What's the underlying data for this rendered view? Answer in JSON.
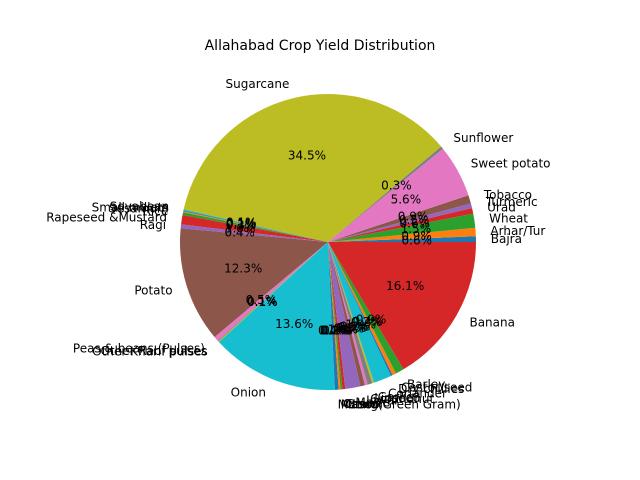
{
  "chart_data": {
    "type": "pie",
    "title": "Allahabad Crop Yield Distribution",
    "startangle_deg": 0,
    "direction": "counterclockwise",
    "label_format": "percent_one_decimal",
    "palette": [
      "#1f77b4",
      "#ff7f0e",
      "#2ca02c",
      "#d62728",
      "#9467bd",
      "#8c564b",
      "#e377c2",
      "#7f7f7f",
      "#bcbd22",
      "#17becf"
    ],
    "slices": [
      {
        "label": "Bajra",
        "pct": 0.6
      },
      {
        "label": "Arhar/Tur",
        "pct": 0.9
      },
      {
        "label": "Wheat",
        "pct": 1.5
      },
      {
        "label": "Urad",
        "pct": 0.6
      },
      {
        "label": "Turmeric",
        "pct": 0.5
      },
      {
        "label": "Tobacco",
        "pct": 0.9
      },
      {
        "label": "Sweet potato",
        "pct": 5.6
      },
      {
        "label": "Sunflower",
        "pct": 0.3
      },
      {
        "label": "Sugarcane",
        "pct": 34.5
      },
      {
        "label": "Soyabean",
        "pct": 0.1
      },
      {
        "label": "Small millets",
        "pct": 0.1
      },
      {
        "label": "Sesamum",
        "pct": 0.1
      },
      {
        "label": "Rice",
        "pct": 0.3
      },
      {
        "label": "Rapeseed &Mustard",
        "pct": 1.0
      },
      {
        "label": "Ragi",
        "pct": 0.4
      },
      {
        "label": "Potato",
        "pct": 12.3
      },
      {
        "label": "Peas & beans (Pulses)",
        "pct": 0.5
      },
      {
        "label": "Other Rabi pulses",
        "pct": 0.1
      },
      {
        "label": "Other Kharif pulses",
        "pct": 0.1
      },
      {
        "label": "Onion",
        "pct": 13.6
      },
      {
        "label": "Moong(Green Gram)",
        "pct": 0.4
      },
      {
        "label": "Masoor",
        "pct": 0.2
      },
      {
        "label": "Other",
        "pct": 0.2
      },
      {
        "label": "Gram",
        "pct": 0.3
      },
      {
        "label": "Maize",
        "pct": 1.6
      },
      {
        "label": "Jowar",
        "pct": 0.5
      },
      {
        "label": "Groundnut",
        "pct": 0.3
      },
      {
        "label": "Linseed",
        "pct": 0.5
      },
      {
        "label": "Garlic",
        "pct": 0.2
      },
      {
        "label": "Coriander",
        "pct": 1.9
      },
      {
        "label": "Dry chillies",
        "pct": 0.2
      },
      {
        "label": "Castor seed",
        "pct": 0.4
      },
      {
        "label": "Barley",
        "pct": 0.9
      },
      {
        "label": "Banana",
        "pct": 16.1
      }
    ]
  }
}
